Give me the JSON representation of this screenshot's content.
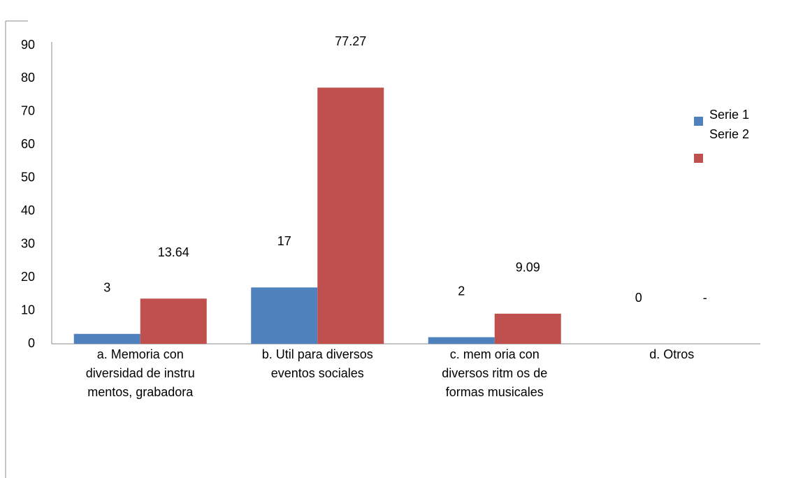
{
  "chart_data": {
    "type": "bar",
    "categories": [
      "a. Memoria con\ndiversidad  de instru\nmentos, grabadora",
      "b. Util para diversos\neventos sociales",
      "c. mem oria con\ndiversos ritm os de\nformas musicales",
      "d. Otros"
    ],
    "series": [
      {
        "name": "Serie 1",
        "color": "#4f81bd",
        "values": [
          3,
          17,
          2,
          0
        ]
      },
      {
        "name": "Serie 2",
        "color": "#c0504d",
        "values": [
          13.64,
          77.27,
          9.09,
          0
        ],
        "value_labels": [
          "13.64",
          "77.27",
          "9.09",
          "-"
        ]
      }
    ],
    "ylim": [
      0,
      90
    ],
    "yticks": [
      0,
      10,
      20,
      30,
      40,
      50,
      60,
      70,
      80,
      90
    ],
    "grid": false,
    "legend": "right"
  }
}
